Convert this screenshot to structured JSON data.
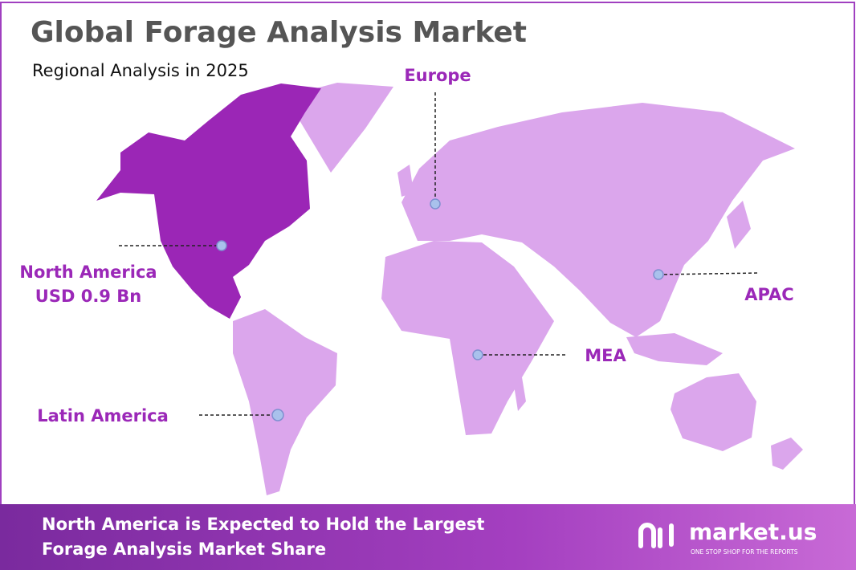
{
  "header": {
    "title": "Global Forage Analysis Market",
    "subtitle": "Regional Analysis in 2025"
  },
  "regions": [
    {
      "label": "North America",
      "value": "USD 0.9 Bn"
    },
    {
      "label": "Europe"
    },
    {
      "label": "APAC"
    },
    {
      "label": "MEA"
    },
    {
      "label": "Latin America"
    }
  ],
  "footer": {
    "lines": [
      "North America is Expected to Hold the Largest",
      "Forage Analysis Market Share"
    ]
  },
  "logo": {
    "name": "market.us",
    "tagline": "ONE STOP SHOP FOR THE REPORTS"
  }
}
